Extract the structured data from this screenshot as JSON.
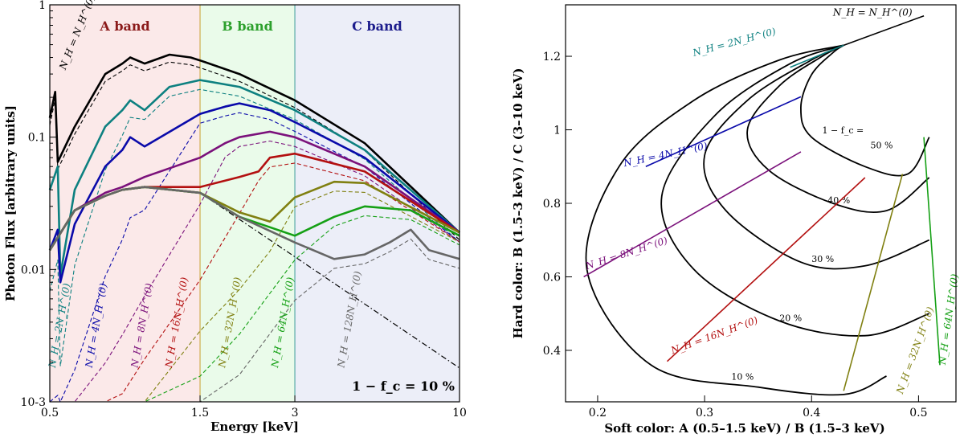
{
  "chart_data": [
    {
      "type": "line",
      "title": "",
      "xlabel": "Energy [keV]",
      "ylabel": "Photon Flux [arbitrary units]",
      "xscale": "log",
      "yscale": "log",
      "xlim": [
        0.5,
        10
      ],
      "ylim": [
        0.001,
        1
      ],
      "xtick_labels": [
        "0.5",
        "1.5",
        "3",
        "10"
      ],
      "xtick_values": [
        0.5,
        1.5,
        3,
        10
      ],
      "ytick_labels": [
        "10-3",
        "0.01",
        "0.1",
        "1"
      ],
      "ytick_values": [
        0.001,
        0.01,
        0.1,
        1
      ],
      "bands": [
        {
          "name": "A band",
          "range": [
            0.5,
            1.5
          ],
          "color": "#fbe9e9",
          "text_color": "#8b1a1a"
        },
        {
          "name": "B band",
          "range": [
            1.5,
            3
          ],
          "color": "#eafbea",
          "text_color": "#2ca02c"
        },
        {
          "name": "C band",
          "range": [
            3,
            10
          ],
          "color": "#eceef8",
          "text_color": "#1c1c8c"
        }
      ],
      "annotation": "1 − f_c = 10 %",
      "series": [
        {
          "name": "NH = NH(0)",
          "label": "N_H = N_H^(0)",
          "color": "#000000",
          "x": [
            0.5,
            0.52,
            0.53,
            0.6,
            0.75,
            0.85,
            0.9,
            1.0,
            1.2,
            1.4,
            1.5,
            2,
            3,
            5,
            10
          ],
          "values": [
            0.14,
            0.22,
            0.065,
            0.12,
            0.3,
            0.36,
            0.4,
            0.36,
            0.42,
            0.4,
            0.38,
            0.3,
            0.19,
            0.09,
            0.019
          ]
        },
        {
          "name": "NH = 2NH(0)",
          "label": "N_H = 2N_H^(0)",
          "color": "#0d8080",
          "x": [
            0.5,
            0.53,
            0.54,
            0.6,
            0.75,
            0.85,
            0.9,
            1.0,
            1.2,
            1.5,
            2,
            3,
            5,
            10
          ],
          "values": [
            0.04,
            0.06,
            0.009,
            0.04,
            0.12,
            0.16,
            0.19,
            0.16,
            0.24,
            0.27,
            0.24,
            0.16,
            0.08,
            0.019
          ]
        },
        {
          "name": "NH = 4NH(0)",
          "label": "N_H = 4N_H^(0)",
          "color": "#0a0aaa",
          "x": [
            0.5,
            0.53,
            0.54,
            0.6,
            0.75,
            0.85,
            0.9,
            1.0,
            1.5,
            1.8,
            2,
            2.5,
            3,
            5,
            10
          ],
          "values": [
            0.014,
            0.02,
            0.008,
            0.022,
            0.06,
            0.08,
            0.1,
            0.085,
            0.15,
            0.17,
            0.18,
            0.16,
            0.13,
            0.07,
            0.019
          ]
        },
        {
          "name": "NH = 8NH(0)",
          "label": "N_H = 8N_H^(0)",
          "color": "#7b117b",
          "x": [
            0.5,
            0.6,
            0.75,
            0.85,
            1.0,
            1.5,
            1.8,
            2,
            2.5,
            3,
            5,
            10
          ],
          "values": [
            0.014,
            0.028,
            0.038,
            0.042,
            0.05,
            0.07,
            0.09,
            0.1,
            0.11,
            0.1,
            0.06,
            0.019
          ]
        },
        {
          "name": "NH = 16NH(0)",
          "label": "N_H = 16N_H^(0)",
          "color": "#b31010",
          "x": [
            0.5,
            0.6,
            0.75,
            0.85,
            1.0,
            1.5,
            2,
            2.3,
            2.5,
            3,
            5,
            10
          ],
          "values": [
            0.014,
            0.028,
            0.036,
            0.04,
            0.042,
            0.042,
            0.05,
            0.055,
            0.07,
            0.075,
            0.055,
            0.019
          ]
        },
        {
          "name": "NH = 32NH(0)",
          "label": "N_H = 32N_H^(0)",
          "color": "#808011",
          "x": [
            0.5,
            0.6,
            0.75,
            0.85,
            1.0,
            1.5,
            2,
            2.5,
            3,
            4,
            5,
            10
          ],
          "values": [
            0.014,
            0.028,
            0.036,
            0.04,
            0.042,
            0.038,
            0.027,
            0.023,
            0.035,
            0.046,
            0.045,
            0.019
          ]
        },
        {
          "name": "NH = 64NH(0)",
          "label": "N_H = 64N_H^(0)",
          "color": "#15a015",
          "x": [
            0.5,
            0.6,
            0.75,
            0.85,
            1.0,
            1.5,
            2,
            3,
            4,
            5,
            7,
            10
          ],
          "values": [
            0.014,
            0.028,
            0.036,
            0.04,
            0.042,
            0.038,
            0.025,
            0.018,
            0.025,
            0.03,
            0.028,
            0.018
          ]
        },
        {
          "name": "NH = 128NH(0)",
          "label": "N_H = 128N_H^(0)",
          "color": "#666666",
          "x": [
            0.5,
            0.6,
            0.75,
            0.85,
            1.0,
            1.5,
            2,
            3,
            4,
            5,
            6,
            7,
            8,
            10
          ],
          "values": [
            0.014,
            0.028,
            0.036,
            0.04,
            0.042,
            0.038,
            0.025,
            0.016,
            0.012,
            0.013,
            0.016,
            0.02,
            0.014,
            0.012
          ]
        }
      ]
    },
    {
      "type": "line",
      "title": "",
      "xlabel": "Soft color: A (0.5–1.5 keV) / B (1.5–3 keV)",
      "ylabel": "Hard color: B (1.5–3 keV) / C (3–10 keV)",
      "xlim": [
        0.17,
        0.535
      ],
      "ylim": [
        0.26,
        1.34
      ],
      "xtick_labels": [
        "0.2",
        "0.3",
        "0.4",
        "0.5"
      ],
      "xtick_values": [
        0.2,
        0.3,
        0.4,
        0.5
      ],
      "ytick_labels": [
        "0.4",
        "0.6",
        "0.8",
        "1",
        "1.2"
      ],
      "ytick_values": [
        0.4,
        0.6,
        0.8,
        1.0,
        1.2
      ],
      "fc_header": "1 − f_c =",
      "covering_tracks": [
        {
          "name": "10 %",
          "x": [
            0.47,
            0.43,
            0.35,
            0.25,
            0.19,
            0.22,
            0.29,
            0.37,
            0.43
          ],
          "values": [
            0.33,
            0.28,
            0.3,
            0.36,
            0.62,
            0.9,
            1.08,
            1.19,
            1.23
          ]
        },
        {
          "name": "20 %",
          "x": [
            0.51,
            0.45,
            0.37,
            0.29,
            0.26,
            0.31,
            0.38,
            0.43
          ],
          "values": [
            0.5,
            0.44,
            0.48,
            0.62,
            0.82,
            1.04,
            1.18,
            1.23
          ]
        },
        {
          "name": "30 %",
          "x": [
            0.51,
            0.45,
            0.39,
            0.32,
            0.3,
            0.34,
            0.4,
            0.43
          ],
          "values": [
            0.7,
            0.63,
            0.64,
            0.78,
            0.93,
            1.08,
            1.19,
            1.23
          ]
        },
        {
          "name": "40 %",
          "x": [
            0.51,
            0.47,
            0.42,
            0.36,
            0.34,
            0.37,
            0.41,
            0.43
          ],
          "values": [
            0.87,
            0.78,
            0.8,
            0.89,
            1.0,
            1.12,
            1.2,
            1.23
          ]
        },
        {
          "name": "50 %",
          "x": [
            0.51,
            0.49,
            0.45,
            0.4,
            0.39,
            0.4,
            0.42,
            0.43
          ],
          "values": [
            0.98,
            0.88,
            0.9,
            0.98,
            1.06,
            1.15,
            1.21,
            1.23
          ]
        }
      ],
      "nh_lines": [
        {
          "name": "NH = NH(0)",
          "label": "N_H = N_H^(0)",
          "color": "#000000",
          "x": [
            0.43,
            0.505
          ],
          "values": [
            1.23,
            1.31
          ]
        },
        {
          "name": "NH = 2NH(0)",
          "label": "N_H = 2N_H^(0)",
          "color": "#0d8080",
          "x": [
            0.38,
            0.43
          ],
          "values": [
            1.17,
            1.23
          ]
        },
        {
          "name": "NH = 4NH(0)",
          "label": "N_H = 4N_H^(0)",
          "color": "#0a0aaa",
          "x": [
            0.245,
            0.39
          ],
          "values": [
            0.9,
            1.09
          ]
        },
        {
          "name": "NH = 8NH(0)",
          "label": "N_H = 8N_H^(0)",
          "color": "#7b117b",
          "x": [
            0.187,
            0.39
          ],
          "values": [
            0.6,
            0.94
          ]
        },
        {
          "name": "NH = 16NH(0)",
          "label": "N_H = 16N_H^(0)",
          "color": "#b31010",
          "x": [
            0.265,
            0.45
          ],
          "values": [
            0.37,
            0.87
          ]
        },
        {
          "name": "NH = 32NH(0)",
          "label": "N_H = 32N_H^(0)",
          "color": "#808011",
          "x": [
            0.43,
            0.485
          ],
          "values": [
            0.29,
            0.88
          ]
        },
        {
          "name": "NH = 64NH(0)",
          "label": "N_H = 64N_H^(0)",
          "color": "#15a015",
          "x": [
            0.505,
            0.52
          ],
          "values": [
            0.98,
            0.36
          ]
        }
      ]
    }
  ]
}
